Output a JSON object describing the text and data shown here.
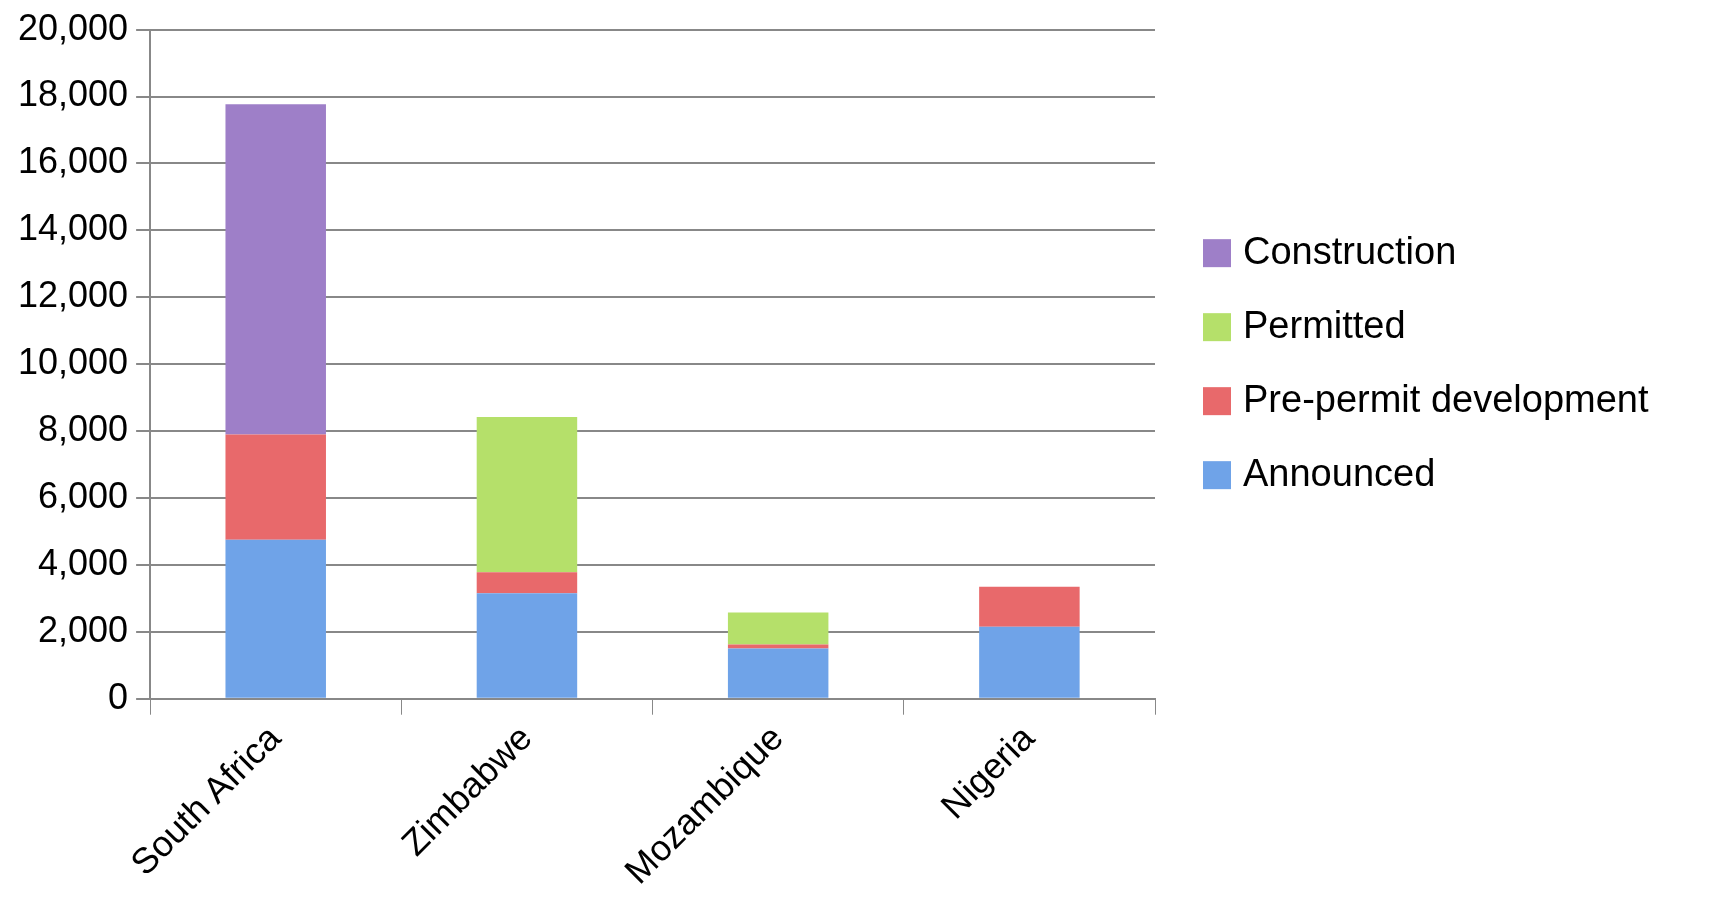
{
  "chart_data": {
    "type": "bar",
    "stacked": true,
    "categories": [
      "South Africa",
      "Zimbabwe",
      "Mozambique",
      "Nigeria"
    ],
    "series": [
      {
        "name": "Announced",
        "color": "#6fa3e8",
        "values": [
          4750,
          3150,
          1500,
          2150
        ]
      },
      {
        "name": "Pre-permit development",
        "color": "#e8696b",
        "values": [
          3150,
          630,
          120,
          1200
        ]
      },
      {
        "name": "Permitted",
        "color": "#b5e06a",
        "values": [
          null,
          4640,
          960,
          null
        ]
      },
      {
        "name": "Construction",
        "color": "#9e7fc8",
        "values": [
          9870,
          null,
          null,
          null
        ]
      }
    ],
    "ylim": [
      0,
      20000
    ],
    "yticks": [
      0,
      {
        "value": 2000,
        "label": "2,000"
      },
      {
        "value": 4000,
        "label": "4,000"
      },
      {
        "value": 6000,
        "label": "6,000"
      },
      {
        "value": 8000,
        "label": "8,000"
      },
      {
        "value": 10000,
        "label": "10,000"
      },
      {
        "value": 12000,
        "label": "12,000"
      },
      {
        "value": 14000,
        "label": "14,000"
      },
      {
        "value": 16000,
        "label": "16,000"
      },
      {
        "value": 18000,
        "label": "18,000"
      },
      {
        "value": 20000,
        "label": "20,000"
      }
    ],
    "grid": "y",
    "legend": "right"
  }
}
